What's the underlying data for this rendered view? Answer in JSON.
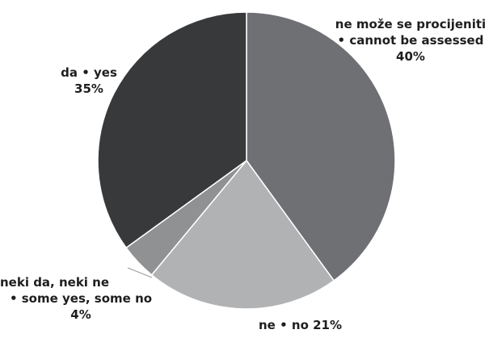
{
  "chart_data": {
    "type": "pie",
    "start_angle_deg": 0,
    "direction": "clockwise",
    "slices": [
      {
        "label_lines": [
          "ne može se procijeniti",
          "• cannot be assessed",
          "40%"
        ],
        "value": 40,
        "color": "#6f7074"
      },
      {
        "label_lines": [
          "ne • no 21%"
        ],
        "value": 21,
        "color": "#b1b2b4"
      },
      {
        "label_lines": [
          "neki da, neki ne",
          "• some yes, some no",
          "4%"
        ],
        "value": 4,
        "color": "#909193"
      },
      {
        "label_lines": [
          "da • yes",
          "35%"
        ],
        "value": 35,
        "color": "#38393b"
      }
    ],
    "legend": "none"
  }
}
